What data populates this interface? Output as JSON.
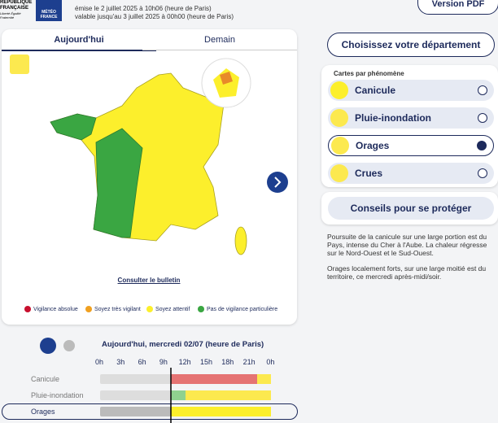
{
  "header": {
    "logo": {
      "republique": "RÉPUBLIQUE FRANÇAISE",
      "devise": "Liberté Égalité Fraternité",
      "meteo": "MÉTÉO FRANCE"
    },
    "emise": "émise le 2 juillet 2025 à 10h06 (heure de Paris)",
    "valable": "valable jusqu'au 3 juillet 2025 à 00h00 (heure de Paris)",
    "pdf": "Version PDF"
  },
  "map_card": {
    "tabs": [
      "Aujourd'hui",
      "Demain"
    ],
    "bulletin": "Consulter le bulletin",
    "legend": [
      "Vigilance absolue",
      "Soyez très vigilant",
      "Soyez attentif",
      "Pas de vigilance particulière"
    ]
  },
  "sidebar": {
    "departement": "Choisissez votre département",
    "cartes_title": "Cartes par phénomène",
    "phenomenes": [
      "Canicule",
      "Pluie-inondation",
      "Orages",
      "Crues"
    ],
    "conseils": "Conseils pour se protéger",
    "paragraphs": [
      "Poursuite de la canicule sur une large portion est du Pays, intense du Cher à l'Aube. La chaleur régresse sur le Nord-Ouest et le Sud-Ouest.",
      "Orages localement forts, sur une large moitié est du territoire, ce mercredi après-midi/soir."
    ]
  },
  "timeline": {
    "title": "Aujourd'hui, mercredi 02/07 (heure de Paris)",
    "hours": [
      "0h",
      "3h",
      "6h",
      "9h",
      "12h",
      "15h",
      "18h",
      "21h",
      "0h"
    ],
    "rows": [
      "Canicule",
      "Pluie-inondation",
      "Orages"
    ]
  }
}
